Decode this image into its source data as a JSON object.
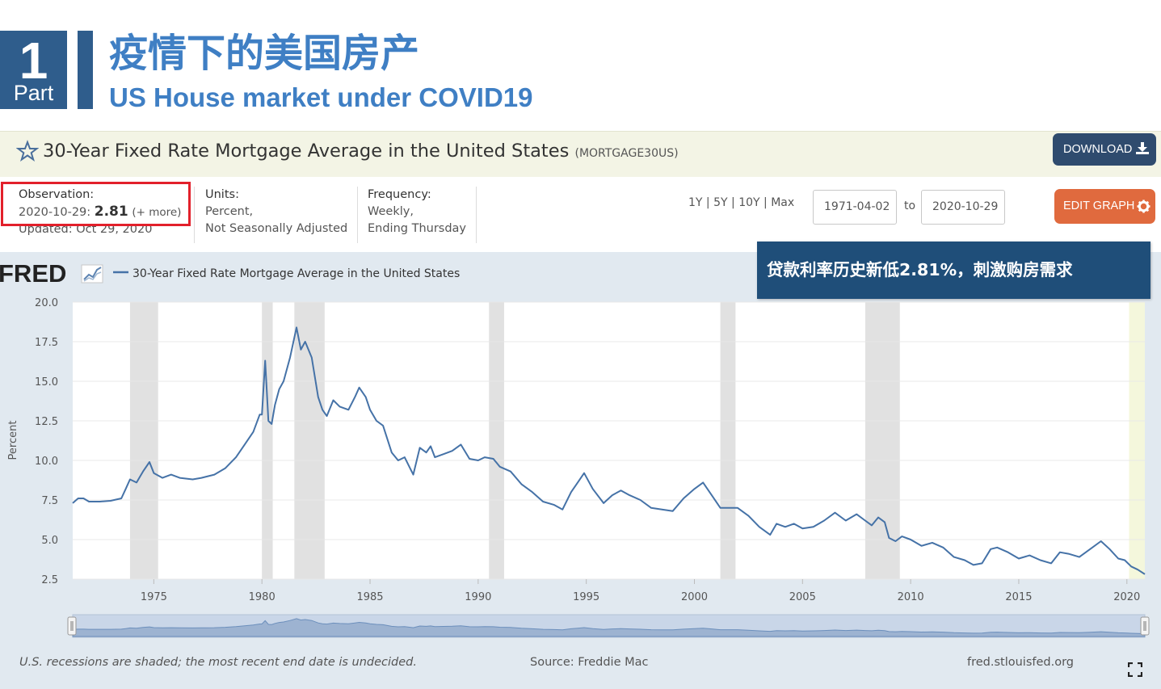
{
  "slide": {
    "part_number": "1",
    "part_label": "Part",
    "title_cn": "疫情下的美国房产",
    "title_en": "US House market under COVID19"
  },
  "series": {
    "title": "30-Year Fixed Rate Mortgage Average in the United States",
    "id": "(MORTGAGE30US)",
    "download_label": "DOWNLOAD",
    "edit_label": "EDIT GRAPH"
  },
  "meta": {
    "observation_label": "Observation:",
    "observation_date": "2020-10-29:",
    "observation_value": "2.81",
    "observation_more": "(+ more)",
    "updated": "Updated: Oct 29, 2020",
    "units_label": "Units:",
    "units_line1": "Percent,",
    "units_line2": "Not Seasonally Adjusted",
    "frequency_label": "Frequency:",
    "frequency_line1": "Weekly,",
    "frequency_line2": "Ending Thursday"
  },
  "controls": {
    "range_1y": "1Y",
    "range_5y": "5Y",
    "range_10y": "10Y",
    "range_max": "Max",
    "sep": "|",
    "start_date": "1971-04-02",
    "to_label": "to",
    "end_date": "2020-10-29"
  },
  "callout": "贷款利率历史新低2.81%，刺激购房需求",
  "footer": {
    "note": "U.S. recessions are shaded; the most recent end date is undecided.",
    "source": "Source: Freddie Mac",
    "url": "fred.stlouisfed.org"
  },
  "colors": {
    "line": "#4572a7",
    "recession": "#e1e1e1",
    "callout": "#1f4e79",
    "highlight_box": "#e2202b"
  },
  "chart_data": {
    "type": "line",
    "logo": "FRED",
    "legend": "30-Year Fixed Rate Mortgage Average in the United States",
    "ylabel": "Percent",
    "xlabel": "",
    "ylim": [
      2.5,
      20.0
    ],
    "xlim": [
      1971.25,
      2020.83
    ],
    "y_ticks": [
      "2.5",
      "5.0",
      "7.5",
      "10.0",
      "12.5",
      "15.0",
      "17.5",
      "20.0"
    ],
    "x_ticks": [
      "1975",
      "1980",
      "1985",
      "1990",
      "1995",
      "2000",
      "2005",
      "2010",
      "2015",
      "2020"
    ],
    "recessions": [
      [
        1973.9,
        1975.2
      ],
      [
        1980.0,
        1980.5
      ],
      [
        1981.5,
        1982.9
      ],
      [
        1990.5,
        1991.2
      ],
      [
        2001.2,
        2001.9
      ],
      [
        2007.9,
        2009.5
      ],
      [
        2020.1,
        2020.83
      ]
    ],
    "series": [
      {
        "name": "30-Year Fixed Rate Mortgage Average in the United States",
        "x": [
          1971.25,
          1971.5,
          1971.75,
          1972.0,
          1972.5,
          1973.0,
          1973.5,
          1973.7,
          1973.9,
          1974.2,
          1974.5,
          1974.8,
          1975.0,
          1975.4,
          1975.8,
          1976.2,
          1976.8,
          1977.2,
          1977.8,
          1978.3,
          1978.8,
          1979.2,
          1979.6,
          1979.9,
          1980.0,
          1980.15,
          1980.3,
          1980.45,
          1980.6,
          1980.8,
          1981.0,
          1981.3,
          1981.6,
          1981.8,
          1982.0,
          1982.3,
          1982.6,
          1982.8,
          1983.0,
          1983.3,
          1983.6,
          1984.0,
          1984.3,
          1984.5,
          1984.8,
          1985.0,
          1985.3,
          1985.6,
          1986.0,
          1986.3,
          1986.6,
          1987.0,
          1987.3,
          1987.6,
          1987.8,
          1988.0,
          1988.4,
          1988.8,
          1989.2,
          1989.6,
          1990.0,
          1990.3,
          1990.7,
          1991.0,
          1991.5,
          1992.0,
          1992.5,
          1993.0,
          1993.5,
          1993.9,
          1994.3,
          1994.6,
          1994.9,
          1995.3,
          1995.8,
          1996.2,
          1996.6,
          1997.0,
          1997.5,
          1998.0,
          1998.5,
          1999.0,
          1999.5,
          2000.0,
          2000.4,
          2000.8,
          2001.2,
          2001.7,
          2002.0,
          2002.5,
          2003.0,
          2003.5,
          2003.8,
          2004.2,
          2004.6,
          2005.0,
          2005.5,
          2006.0,
          2006.5,
          2007.0,
          2007.5,
          2007.9,
          2008.2,
          2008.5,
          2008.8,
          2009.0,
          2009.3,
          2009.6,
          2010.0,
          2010.5,
          2011.0,
          2011.5,
          2012.0,
          2012.5,
          2012.9,
          2013.3,
          2013.7,
          2014.0,
          2014.5,
          2015.0,
          2015.5,
          2016.0,
          2016.5,
          2016.9,
          2017.3,
          2017.8,
          2018.3,
          2018.8,
          2019.2,
          2019.6,
          2019.9,
          2020.2,
          2020.5,
          2020.83
        ],
        "y": [
          7.3,
          7.6,
          7.6,
          7.4,
          7.4,
          7.45,
          7.6,
          8.2,
          8.8,
          8.6,
          9.3,
          9.9,
          9.2,
          8.9,
          9.1,
          8.9,
          8.8,
          8.9,
          9.1,
          9.5,
          10.2,
          11.0,
          11.8,
          12.9,
          12.9,
          16.3,
          12.5,
          12.3,
          13.5,
          14.5,
          15.0,
          16.5,
          18.4,
          17.0,
          17.5,
          16.5,
          14.0,
          13.2,
          12.8,
          13.8,
          13.4,
          13.2,
          14.0,
          14.6,
          14.0,
          13.2,
          12.5,
          12.2,
          10.5,
          10.0,
          10.2,
          9.1,
          10.8,
          10.5,
          10.9,
          10.2,
          10.4,
          10.6,
          11.0,
          10.1,
          10.0,
          10.2,
          10.1,
          9.6,
          9.3,
          8.5,
          8.0,
          7.4,
          7.2,
          6.9,
          8.0,
          8.6,
          9.2,
          8.2,
          7.3,
          7.8,
          8.1,
          7.8,
          7.5,
          7.0,
          6.9,
          6.8,
          7.6,
          8.2,
          8.6,
          7.8,
          7.0,
          7.0,
          7.0,
          6.5,
          5.8,
          5.3,
          6.0,
          5.8,
          6.0,
          5.7,
          5.8,
          6.2,
          6.7,
          6.2,
          6.6,
          6.2,
          5.9,
          6.4,
          6.1,
          5.1,
          4.9,
          5.2,
          5.0,
          4.6,
          4.8,
          4.5,
          3.9,
          3.7,
          3.4,
          3.5,
          4.4,
          4.5,
          4.2,
          3.8,
          4.0,
          3.7,
          3.5,
          4.2,
          4.1,
          3.9,
          4.4,
          4.9,
          4.4,
          3.8,
          3.7,
          3.3,
          3.1,
          2.81
        ]
      }
    ]
  }
}
